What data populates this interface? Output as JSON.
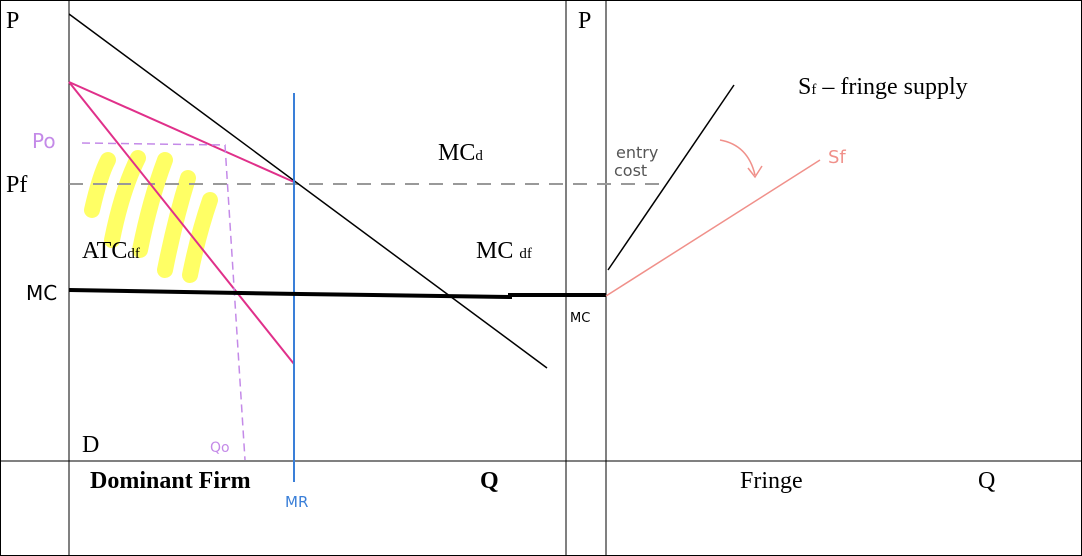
{
  "left_panel": {
    "p_axis": "P",
    "pf": "Pf",
    "mc_axis": "MC",
    "po": "Po",
    "mcd": {
      "main": "MC",
      "sub": "d"
    },
    "atcdf": {
      "main": "ATC",
      "sub": "df"
    },
    "mcdf": {
      "main": "MC",
      "sub": "df"
    },
    "d": "D",
    "qo": "Qo",
    "title": "Dominant Firm",
    "q": "Q",
    "mr": "MR"
  },
  "right_panel": {
    "p_axis": "P",
    "mc": "MC",
    "entry_cost": [
      "entry",
      "cost"
    ],
    "sf": "Sf",
    "supply": {
      "main": "S",
      "sub": "f",
      "rest": " – fringe supply"
    },
    "title": "Fringe",
    "q": "Q"
  }
}
